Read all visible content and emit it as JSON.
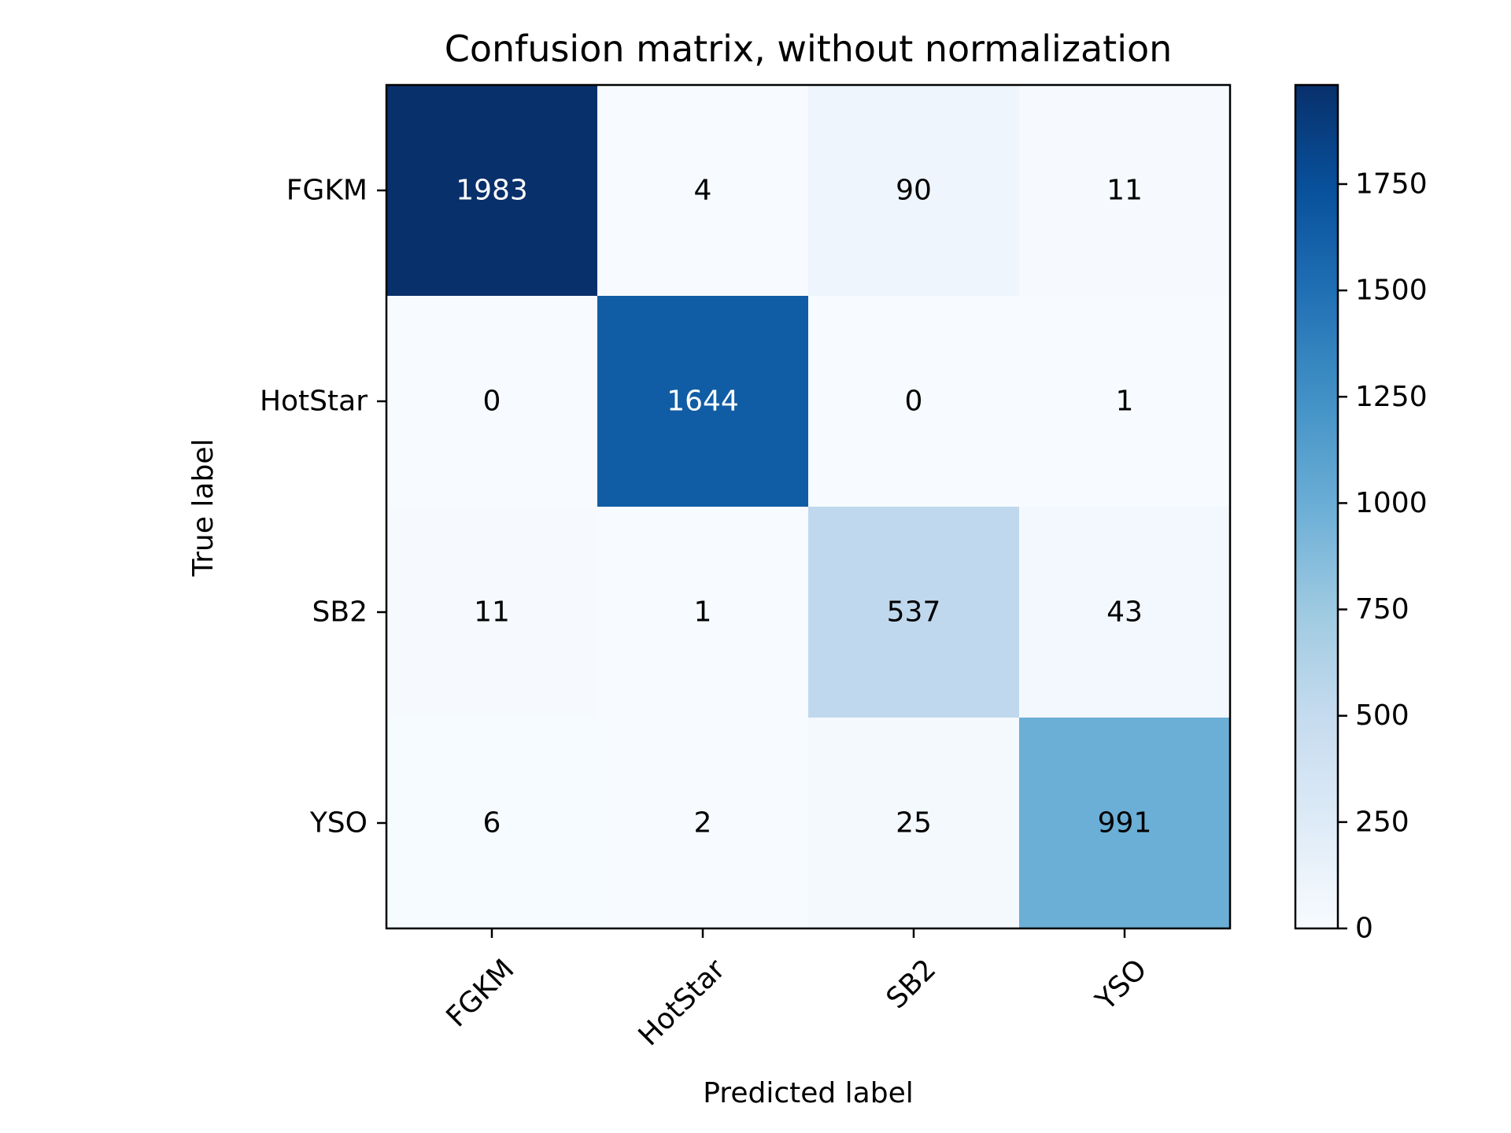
{
  "chart_data": {
    "type": "heatmap",
    "title": "Confusion matrix, without normalization",
    "xlabel": "Predicted label",
    "ylabel": "True label",
    "x_categories": [
      "FGKM",
      "HotStar",
      "SB2",
      "YSO"
    ],
    "y_categories": [
      "FGKM",
      "HotStar",
      "SB2",
      "YSO"
    ],
    "values": [
      [
        1983,
        4,
        90,
        11
      ],
      [
        0,
        1644,
        0,
        1
      ],
      [
        11,
        1,
        537,
        43
      ],
      [
        6,
        2,
        25,
        991
      ]
    ],
    "colormap": "Blues",
    "color_range": [
      0,
      1983
    ],
    "colorbar_ticks": [
      0,
      250,
      500,
      750,
      1000,
      1250,
      1500,
      1750
    ],
    "x_tick_rotation_deg": 45,
    "grid": false,
    "colorbar_placement": "right"
  }
}
